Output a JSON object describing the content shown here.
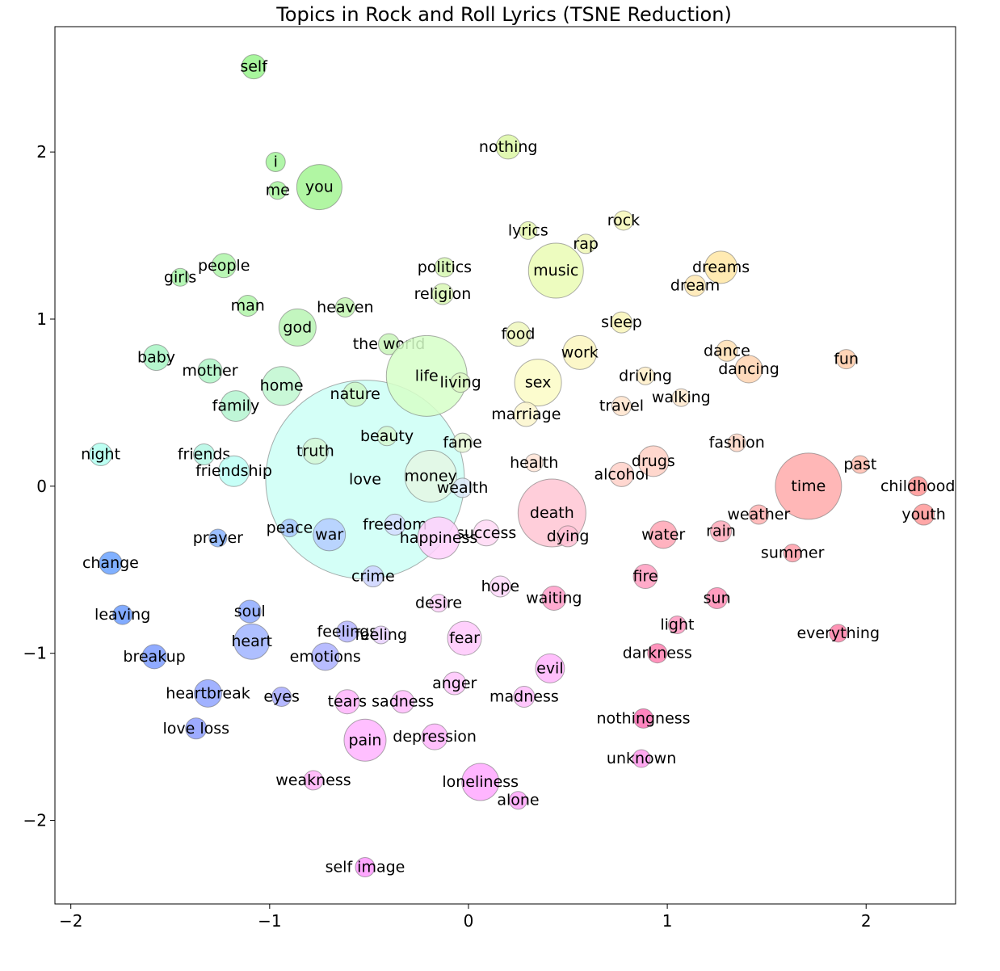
{
  "chart_data": {
    "type": "scatter",
    "title": "Topics in Rock and Roll Lyrics (TSNE Reduction)",
    "xlabel": "",
    "ylabel": "",
    "xlim": [
      -2.08,
      2.45
    ],
    "ylim": [
      -2.5,
      2.75
    ],
    "xticks": [
      -2,
      -1,
      0,
      1,
      2
    ],
    "xtick_labels": [
      "−2",
      "−1",
      "0",
      "1",
      "2"
    ],
    "yticks": [
      -2,
      -1,
      0,
      1,
      2
    ],
    "ytick_labels": [
      "−2",
      "−1",
      "0",
      "1",
      "2"
    ],
    "grid": false,
    "points": [
      {
        "label": "love",
        "x": -0.52,
        "y": 0.04,
        "r": 123,
        "color": "#ccfff6"
      },
      {
        "label": "self",
        "x": -1.08,
        "y": 2.51,
        "r": 15,
        "color": "#99f58c"
      },
      {
        "label": "nothing",
        "x": 0.2,
        "y": 2.03,
        "r": 15,
        "color": "#dcf7a4"
      },
      {
        "label": "i",
        "x": -0.97,
        "y": 1.94,
        "r": 12,
        "color": "#a3f59a"
      },
      {
        "label": "you",
        "x": -0.75,
        "y": 1.79,
        "r": 28,
        "color": "#a3f593"
      },
      {
        "label": "me",
        "x": -0.96,
        "y": 1.77,
        "r": 11,
        "color": "#a8f59e"
      },
      {
        "label": "rock",
        "x": 0.78,
        "y": 1.59,
        "r": 12,
        "color": "#f6f7b8"
      },
      {
        "label": "lyrics",
        "x": 0.3,
        "y": 1.53,
        "r": 11,
        "color": "#e6f7b0"
      },
      {
        "label": "rap",
        "x": 0.59,
        "y": 1.45,
        "r": 12,
        "color": "#eef7b4"
      },
      {
        "label": "people",
        "x": -1.23,
        "y": 1.32,
        "r": 15,
        "color": "#aef5a8"
      },
      {
        "label": "politics",
        "x": -0.12,
        "y": 1.31,
        "r": 12,
        "color": "#d6f7b0"
      },
      {
        "label": "music",
        "x": 0.44,
        "y": 1.29,
        "r": 34,
        "color": "#eafbb4"
      },
      {
        "label": "dreams",
        "x": 1.27,
        "y": 1.31,
        "r": 20,
        "color": "#ffe6a4"
      },
      {
        "label": "girls",
        "x": -1.45,
        "y": 1.25,
        "r": 11,
        "color": "#a8f5a8"
      },
      {
        "label": "dream",
        "x": 1.14,
        "y": 1.2,
        "r": 13,
        "color": "#ffe8b0"
      },
      {
        "label": "religion",
        "x": -0.13,
        "y": 1.15,
        "r": 13,
        "color": "#d8f7b4"
      },
      {
        "label": "man",
        "x": -1.11,
        "y": 1.08,
        "r": 13,
        "color": "#b0f5a8"
      },
      {
        "label": "heaven",
        "x": -0.62,
        "y": 1.07,
        "r": 12,
        "color": "#c2f5b0"
      },
      {
        "label": "god",
        "x": -0.86,
        "y": 0.95,
        "r": 23,
        "color": "#b8f5b4"
      },
      {
        "label": "sleep",
        "x": 0.77,
        "y": 0.98,
        "r": 13,
        "color": "#f8f4b8"
      },
      {
        "label": "food",
        "x": 0.25,
        "y": 0.91,
        "r": 15,
        "color": "#eff7bc"
      },
      {
        "label": "the world",
        "x": -0.4,
        "y": 0.85,
        "r": 13,
        "color": "#c8f5b8"
      },
      {
        "label": "baby",
        "x": -1.57,
        "y": 0.77,
        "r": 16,
        "color": "#a8f5c4"
      },
      {
        "label": "work",
        "x": 0.56,
        "y": 0.8,
        "r": 21,
        "color": "#fbf6c0"
      },
      {
        "label": "dance",
        "x": 1.3,
        "y": 0.81,
        "r": 13,
        "color": "#ffe0b4"
      },
      {
        "label": "fun",
        "x": 1.9,
        "y": 0.76,
        "r": 12,
        "color": "#ffccaa"
      },
      {
        "label": "mother",
        "x": -1.3,
        "y": 0.69,
        "r": 15,
        "color": "#aef5c6"
      },
      {
        "label": "dancing",
        "x": 1.41,
        "y": 0.7,
        "r": 17,
        "color": "#ffd4b0"
      },
      {
        "label": "life",
        "x": -0.21,
        "y": 0.66,
        "r": 50,
        "color": "#d6ffc8"
      },
      {
        "label": "sex",
        "x": 0.35,
        "y": 0.62,
        "r": 29,
        "color": "#fbfbc6"
      },
      {
        "label": "driving",
        "x": 0.89,
        "y": 0.66,
        "r": 11,
        "color": "#ffeec8"
      },
      {
        "label": "living",
        "x": -0.04,
        "y": 0.62,
        "r": 12,
        "color": "#ddf7c4"
      },
      {
        "label": "home",
        "x": -0.94,
        "y": 0.6,
        "r": 24,
        "color": "#c0f7d0"
      },
      {
        "label": "nature",
        "x": -0.57,
        "y": 0.55,
        "r": 15,
        "color": "#cdf7c6"
      },
      {
        "label": "walking",
        "x": 1.07,
        "y": 0.53,
        "r": 11,
        "color": "#ffe8cc"
      },
      {
        "label": "family",
        "x": -1.17,
        "y": 0.48,
        "r": 19,
        "color": "#b4f5d0"
      },
      {
        "label": "travel",
        "x": 0.77,
        "y": 0.48,
        "r": 12,
        "color": "#ffe4cc"
      },
      {
        "label": "marriage",
        "x": 0.29,
        "y": 0.43,
        "r": 15,
        "color": "#fbf6cc"
      },
      {
        "label": "beauty",
        "x": -0.41,
        "y": 0.3,
        "r": 12,
        "color": "#d4f7d0"
      },
      {
        "label": "fame",
        "x": -0.03,
        "y": 0.26,
        "r": 12,
        "color": "#e6f7d6"
      },
      {
        "label": "fashion",
        "x": 1.35,
        "y": 0.26,
        "r": 11,
        "color": "#ffd6c4"
      },
      {
        "label": "truth",
        "x": -0.77,
        "y": 0.21,
        "r": 16,
        "color": "#d4f7d6"
      },
      {
        "label": "night",
        "x": -1.85,
        "y": 0.19,
        "r": 14,
        "color": "#b0fff0"
      },
      {
        "label": "friends",
        "x": -1.33,
        "y": 0.19,
        "r": 13,
        "color": "#b4f7e4"
      },
      {
        "label": "drugs",
        "x": 0.93,
        "y": 0.15,
        "r": 19,
        "color": "#ffd0c4"
      },
      {
        "label": "health",
        "x": 0.33,
        "y": 0.14,
        "r": 11,
        "color": "#ffe4d6"
      },
      {
        "label": "past",
        "x": 1.97,
        "y": 0.13,
        "r": 11,
        "color": "#ffbcae"
      },
      {
        "label": "friendship",
        "x": -1.18,
        "y": 0.09,
        "r": 19,
        "color": "#bcfff6"
      },
      {
        "label": "money",
        "x": -0.19,
        "y": 0.06,
        "r": 32,
        "color": "#e4f7e4"
      },
      {
        "label": "alcohol",
        "x": 0.77,
        "y": 0.07,
        "r": 15,
        "color": "#ffd0c8"
      },
      {
        "label": "time",
        "x": 1.71,
        "y": 0.0,
        "r": 41,
        "color": "#ffaaaa"
      },
      {
        "label": "wealth",
        "x": -0.03,
        "y": -0.01,
        "r": 12,
        "color": "#dce8f7"
      },
      {
        "label": "childhood",
        "x": 2.26,
        "y": 0.0,
        "r": 12,
        "color": "#ff9494"
      },
      {
        "label": "death",
        "x": 0.42,
        "y": -0.16,
        "r": 42,
        "color": "#ffc6d4"
      },
      {
        "label": "weather",
        "x": 1.46,
        "y": -0.17,
        "r": 12,
        "color": "#ffb0b0"
      },
      {
        "label": "youth",
        "x": 2.29,
        "y": -0.17,
        "r": 13,
        "color": "#ff9898"
      },
      {
        "label": "freedom",
        "x": -0.37,
        "y": -0.23,
        "r": 13,
        "color": "#d4dcff"
      },
      {
        "label": "peace",
        "x": -0.9,
        "y": -0.25,
        "r": 11,
        "color": "#a8c8ff"
      },
      {
        "label": "rain",
        "x": 1.27,
        "y": -0.27,
        "r": 13,
        "color": "#ffa8b8"
      },
      {
        "label": "success",
        "x": 0.09,
        "y": -0.28,
        "r": 16,
        "color": "#ffd8f4"
      },
      {
        "label": "war",
        "x": -0.7,
        "y": -0.29,
        "r": 20,
        "color": "#b4ccff"
      },
      {
        "label": "happiness",
        "x": -0.15,
        "y": -0.31,
        "r": 26,
        "color": "#ffd0fb"
      },
      {
        "label": "dying",
        "x": 0.5,
        "y": -0.3,
        "r": 13,
        "color": "#ffc0d4"
      },
      {
        "label": "water",
        "x": 0.98,
        "y": -0.29,
        "r": 17,
        "color": "#ffa4b4"
      },
      {
        "label": "prayer",
        "x": -1.26,
        "y": -0.31,
        "r": 11,
        "color": "#8ab4ff"
      },
      {
        "label": "change",
        "x": -1.8,
        "y": -0.46,
        "r": 14,
        "color": "#6aa2ff"
      },
      {
        "label": "summer",
        "x": 1.63,
        "y": -0.4,
        "r": 11,
        "color": "#ff9ca8"
      },
      {
        "label": "crime",
        "x": -0.48,
        "y": -0.54,
        "r": 13,
        "color": "#ccd4ff"
      },
      {
        "label": "fire",
        "x": 0.89,
        "y": -0.54,
        "r": 15,
        "color": "#ff9cc0"
      },
      {
        "label": "hope",
        "x": 0.16,
        "y": -0.6,
        "r": 13,
        "color": "#ffd8fb"
      },
      {
        "label": "waiting",
        "x": 0.43,
        "y": -0.67,
        "r": 15,
        "color": "#ff9cc8"
      },
      {
        "label": "sun",
        "x": 1.25,
        "y": -0.67,
        "r": 13,
        "color": "#ff8cb4"
      },
      {
        "label": "desire",
        "x": -0.15,
        "y": -0.7,
        "r": 11,
        "color": "#ffd0fb"
      },
      {
        "label": "leaving",
        "x": -1.74,
        "y": -0.77,
        "r": 12,
        "color": "#6c9cff"
      },
      {
        "label": "soul",
        "x": -1.1,
        "y": -0.75,
        "r": 14,
        "color": "#8eaaff"
      },
      {
        "label": "light",
        "x": 1.05,
        "y": -0.83,
        "r": 11,
        "color": "#ff98c0"
      },
      {
        "label": "everything",
        "x": 1.86,
        "y": -0.88,
        "r": 11,
        "color": "#ff80a8"
      },
      {
        "label": "feelings",
        "x": -0.61,
        "y": -0.87,
        "r": 13,
        "color": "#b4b4ff"
      },
      {
        "label": "feeling",
        "x": -0.44,
        "y": -0.89,
        "r": 11,
        "color": "#e8d0ff"
      },
      {
        "label": "fear",
        "x": -0.02,
        "y": -0.91,
        "r": 21,
        "color": "#ffc8fb"
      },
      {
        "label": "heart",
        "x": -1.09,
        "y": -0.93,
        "r": 22,
        "color": "#a0b4ff"
      },
      {
        "label": "breakup",
        "x": -1.58,
        "y": -1.02,
        "r": 15,
        "color": "#7c9cff"
      },
      {
        "label": "emotions",
        "x": -0.72,
        "y": -1.02,
        "r": 17,
        "color": "#acb0ff"
      },
      {
        "label": "darkness",
        "x": 0.95,
        "y": -1.0,
        "r": 12,
        "color": "#ff80b0"
      },
      {
        "label": "evil",
        "x": 0.41,
        "y": -1.09,
        "r": 18,
        "color": "#ffb4fb"
      },
      {
        "label": "anger",
        "x": -0.07,
        "y": -1.18,
        "r": 14,
        "color": "#ffc4fb"
      },
      {
        "label": "heartbreak",
        "x": -1.31,
        "y": -1.24,
        "r": 17,
        "color": "#90a4ff"
      },
      {
        "label": "eyes",
        "x": -0.94,
        "y": -1.26,
        "r": 12,
        "color": "#a8acff"
      },
      {
        "label": "madness",
        "x": 0.28,
        "y": -1.26,
        "r": 13,
        "color": "#ffbcfb"
      },
      {
        "label": "tears",
        "x": -0.61,
        "y": -1.29,
        "r": 15,
        "color": "#ffb4fb"
      },
      {
        "label": "sadness",
        "x": -0.33,
        "y": -1.29,
        "r": 14,
        "color": "#ffbcfb"
      },
      {
        "label": "nothingness",
        "x": 0.88,
        "y": -1.39,
        "r": 12,
        "color": "#ff70b4"
      },
      {
        "label": "love loss",
        "x": -1.37,
        "y": -1.45,
        "r": 13,
        "color": "#8c9cff"
      },
      {
        "label": "depression",
        "x": -0.17,
        "y": -1.5,
        "r": 16,
        "color": "#ffb4fb"
      },
      {
        "label": "pain",
        "x": -0.52,
        "y": -1.52,
        "r": 26,
        "color": "#ffb4ff"
      },
      {
        "label": "unknown",
        "x": 0.87,
        "y": -1.63,
        "r": 11,
        "color": "#ff98ec"
      },
      {
        "label": "weakness",
        "x": -0.78,
        "y": -1.76,
        "r": 12,
        "color": "#ffb0f8"
      },
      {
        "label": "loneliness",
        "x": 0.06,
        "y": -1.77,
        "r": 23,
        "color": "#ffa8ff"
      },
      {
        "label": "alone",
        "x": 0.25,
        "y": -1.88,
        "r": 11,
        "color": "#ffa4fb"
      },
      {
        "label": "self image",
        "x": -0.52,
        "y": -2.28,
        "r": 12,
        "color": "#ff98ff"
      }
    ]
  }
}
